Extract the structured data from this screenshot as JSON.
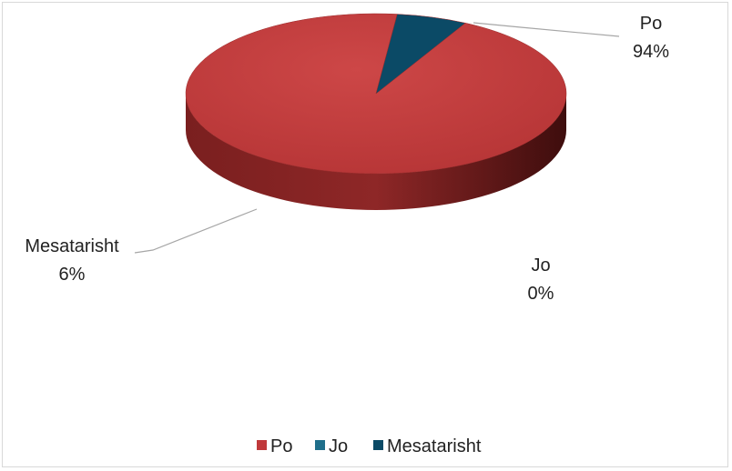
{
  "chart_data": {
    "type": "pie",
    "title": "",
    "categories": [
      "Po",
      "Jo",
      "Mesatarisht"
    ],
    "values": [
      94,
      0,
      6
    ],
    "value_labels": [
      "94%",
      "0%",
      "6%"
    ],
    "colors": [
      "#c0393b",
      "#1f6f8b",
      "#0b4a66"
    ],
    "legend_position": "bottom",
    "three_d": true
  }
}
